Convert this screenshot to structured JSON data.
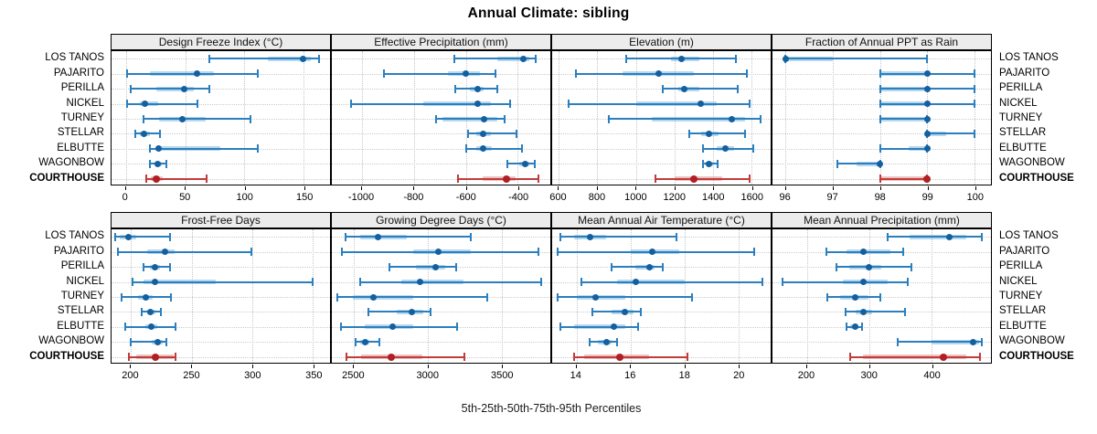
{
  "title": "Annual Climate: sibling",
  "caption": "5th-25th-50th-75th-95th Percentiles",
  "sites": [
    "LOS TANOS",
    "PAJARITO",
    "PERILLA",
    "NICKEL",
    "TURNEY",
    "STELLAR",
    "ELBUTTE",
    "WAGONBOW",
    "COURTHOUSE"
  ],
  "highlight_site": "COURTHOUSE",
  "percentile_labels": [
    "5th",
    "25th",
    "50th",
    "75th",
    "95th"
  ],
  "colors": {
    "blue_dot": "#14609f",
    "blue_line": "#2b7fbe",
    "blue_band": "#7db8de",
    "red_dot": "#b01f24",
    "red_line": "#c23b3b",
    "red_band": "#dc8f8f",
    "strip_bg": "#ececec",
    "grid": "#c9c9c9",
    "border": "#000000"
  },
  "chart_data": [
    {
      "type": "scatter",
      "title": "Design Freeze Index (°C)",
      "grid_row": 0,
      "grid_col": 0,
      "domain": [
        -12,
        172
      ],
      "ticks": [
        0,
        50,
        100,
        150
      ],
      "series": [
        {
          "site": "LOS TANOS",
          "values": [
            70,
            120,
            149,
            156,
            163
          ]
        },
        {
          "site": "PAJARITO",
          "values": [
            1,
            20,
            60,
            74,
            111
          ]
        },
        {
          "site": "PERILLA",
          "values": [
            4,
            26,
            49,
            57,
            70
          ]
        },
        {
          "site": "NICKEL",
          "values": [
            1,
            12,
            16,
            27,
            60
          ]
        },
        {
          "site": "TURNEY",
          "values": [
            15,
            28,
            48,
            67,
            105
          ]
        },
        {
          "site": "STELLAR",
          "values": [
            8,
            12,
            15,
            20,
            29
          ]
        },
        {
          "site": "ELBUTTE",
          "values": [
            20,
            25,
            28,
            80,
            111
          ]
        },
        {
          "site": "WAGONBOW",
          "values": [
            20,
            24,
            27,
            30,
            34
          ]
        },
        {
          "site": "COURTHOUSE",
          "values": [
            17,
            21,
            26,
            31,
            68
          ]
        }
      ]
    },
    {
      "type": "scatter",
      "title": "Effective Precipitation (mm)",
      "grid_row": 0,
      "grid_col": 1,
      "domain": [
        -1115,
        -275
      ],
      "ticks": [
        -1000,
        -800,
        -600,
        -400
      ],
      "series": [
        {
          "site": "LOS TANOS",
          "values": [
            -645,
            -480,
            -380,
            -355,
            -330
          ]
        },
        {
          "site": "PAJARITO",
          "values": [
            -915,
            -670,
            -600,
            -545,
            -485
          ]
        },
        {
          "site": "PERILLA",
          "values": [
            -640,
            -585,
            -555,
            -530,
            -480
          ]
        },
        {
          "site": "NICKEL",
          "values": [
            -1040,
            -765,
            -555,
            -505,
            -430
          ]
        },
        {
          "site": "TURNEY",
          "values": [
            -715,
            -690,
            -530,
            -480,
            -450
          ]
        },
        {
          "site": "STELLAR",
          "values": [
            -590,
            -560,
            -535,
            -505,
            -405
          ]
        },
        {
          "site": "ELBUTTE",
          "values": [
            -600,
            -560,
            -535,
            -500,
            -385
          ]
        },
        {
          "site": "WAGONBOW",
          "values": [
            -440,
            -395,
            -370,
            -355,
            -335
          ]
        },
        {
          "site": "COURTHOUSE",
          "values": [
            -630,
            -535,
            -445,
            -410,
            -320
          ]
        }
      ]
    },
    {
      "type": "scatter",
      "title": "Elevation (m)",
      "grid_row": 0,
      "grid_col": 2,
      "domain": [
        565,
        1700
      ],
      "ticks": [
        600,
        800,
        1000,
        1200,
        1400,
        1600
      ],
      "series": [
        {
          "site": "LOS TANOS",
          "values": [
            950,
            1180,
            1235,
            1330,
            1520
          ]
        },
        {
          "site": "PAJARITO",
          "values": [
            690,
            930,
            1120,
            1300,
            1575
          ]
        },
        {
          "site": "PERILLA",
          "values": [
            1140,
            1220,
            1250,
            1330,
            1530
          ]
        },
        {
          "site": "NICKEL",
          "values": [
            650,
            1000,
            1335,
            1420,
            1590
          ]
        },
        {
          "site": "TURNEY",
          "values": [
            860,
            1085,
            1500,
            1565,
            1650
          ]
        },
        {
          "site": "STELLAR",
          "values": [
            1275,
            1340,
            1380,
            1430,
            1565
          ]
        },
        {
          "site": "ELBUTTE",
          "values": [
            1350,
            1420,
            1465,
            1510,
            1610
          ]
        },
        {
          "site": "WAGONBOW",
          "values": [
            1350,
            1365,
            1380,
            1400,
            1425
          ]
        },
        {
          "site": "COURTHOUSE",
          "values": [
            1100,
            1200,
            1300,
            1450,
            1590
          ]
        }
      ]
    },
    {
      "type": "scatter",
      "title": "Fraction of Annual PPT as Rain",
      "grid_row": 0,
      "grid_col": 3,
      "domain": [
        95.72,
        100.35
      ],
      "ticks": [
        96,
        97,
        98,
        99,
        100
      ],
      "series": [
        {
          "site": "LOS TANOS",
          "values": [
            96,
            96,
            96,
            97,
            99
          ]
        },
        {
          "site": "PAJARITO",
          "values": [
            98,
            98,
            99,
            99,
            100
          ]
        },
        {
          "site": "PERILLA",
          "values": [
            98,
            98,
            99,
            99,
            100
          ]
        },
        {
          "site": "NICKEL",
          "values": [
            98,
            98,
            99,
            99,
            100
          ]
        },
        {
          "site": "TURNEY",
          "values": [
            98,
            98,
            99,
            99,
            99
          ]
        },
        {
          "site": "STELLAR",
          "values": [
            99,
            99,
            99,
            99.4,
            100
          ]
        },
        {
          "site": "ELBUTTE",
          "values": [
            98,
            98.6,
            99,
            99,
            99
          ]
        },
        {
          "site": "WAGONBOW",
          "values": [
            97.1,
            97.5,
            98,
            98,
            98
          ]
        },
        {
          "site": "COURTHOUSE",
          "values": [
            98,
            98,
            99,
            99,
            99
          ]
        }
      ]
    },
    {
      "type": "scatter",
      "title": "Frost-Free Days",
      "grid_row": 1,
      "grid_col": 0,
      "domain": [
        184,
        364
      ],
      "ticks": [
        200,
        250,
        300,
        350
      ],
      "series": [
        {
          "site": "LOS TANOS",
          "values": [
            187,
            191,
            198,
            204,
            232
          ]
        },
        {
          "site": "PAJARITO",
          "values": [
            189,
            213,
            228,
            236,
            299
          ]
        },
        {
          "site": "PERILLA",
          "values": [
            210,
            216,
            220,
            224,
            232
          ]
        },
        {
          "site": "NICKEL",
          "values": [
            201,
            210,
            220,
            270,
            350
          ]
        },
        {
          "site": "TURNEY",
          "values": [
            192,
            206,
            212,
            218,
            233
          ]
        },
        {
          "site": "STELLAR",
          "values": [
            209,
            213,
            216,
            220,
            225
          ]
        },
        {
          "site": "ELBUTTE",
          "values": [
            195,
            212,
            217,
            222,
            237
          ]
        },
        {
          "site": "WAGONBOW",
          "values": [
            200,
            217,
            222,
            226,
            229
          ]
        },
        {
          "site": "COURTHOUSE",
          "values": [
            198,
            204,
            220,
            235,
            237
          ]
        }
      ]
    },
    {
      "type": "scatter",
      "title": "Growing Degree Days (°C)",
      "grid_row": 1,
      "grid_col": 1,
      "domain": [
        2350,
        3830
      ],
      "ticks": [
        2500,
        3000,
        3500
      ],
      "series": [
        {
          "site": "LOS TANOS",
          "values": [
            2440,
            2540,
            2660,
            2860,
            3290
          ]
        },
        {
          "site": "PAJARITO",
          "values": [
            2420,
            2900,
            3070,
            3290,
            3750
          ]
        },
        {
          "site": "PERILLA",
          "values": [
            2740,
            2920,
            3050,
            3120,
            3190
          ]
        },
        {
          "site": "NICKEL",
          "values": [
            2540,
            2820,
            2950,
            3240,
            3770
          ]
        },
        {
          "site": "TURNEY",
          "values": [
            2390,
            2490,
            2630,
            2900,
            3400
          ]
        },
        {
          "site": "STELLAR",
          "values": [
            2600,
            2790,
            2890,
            2970,
            3020
          ]
        },
        {
          "site": "ELBUTTE",
          "values": [
            2410,
            2570,
            2760,
            2900,
            3200
          ]
        },
        {
          "site": "WAGONBOW",
          "values": [
            2510,
            2540,
            2575,
            2605,
            2675
          ]
        },
        {
          "site": "COURTHOUSE",
          "values": [
            2450,
            2550,
            2755,
            2960,
            3250
          ]
        }
      ]
    },
    {
      "type": "scatter",
      "title": "Mean Annual Air Temperature (°C)",
      "grid_row": 1,
      "grid_col": 2,
      "domain": [
        13.1,
        21.2
      ],
      "ticks": [
        14,
        16,
        18,
        20
      ],
      "series": [
        {
          "site": "LOS TANOS",
          "values": [
            13.4,
            13.9,
            14.5,
            15.1,
            17.7
          ]
        },
        {
          "site": "PAJARITO",
          "values": [
            13.3,
            16.0,
            16.8,
            17.8,
            20.6
          ]
        },
        {
          "site": "PERILLA",
          "values": [
            15.3,
            16.2,
            16.7,
            16.9,
            17.2
          ]
        },
        {
          "site": "NICKEL",
          "values": [
            14.2,
            15.5,
            16.2,
            18.0,
            20.9
          ]
        },
        {
          "site": "TURNEY",
          "values": [
            13.3,
            14.0,
            14.7,
            15.8,
            18.3
          ]
        },
        {
          "site": "STELLAR",
          "values": [
            14.6,
            15.3,
            15.8,
            16.1,
            16.4
          ]
        },
        {
          "site": "ELBUTTE",
          "values": [
            13.4,
            13.9,
            15.4,
            15.8,
            16.3
          ]
        },
        {
          "site": "WAGONBOW",
          "values": [
            14.5,
            14.8,
            15.1,
            15.3,
            15.5
          ]
        },
        {
          "site": "COURTHOUSE",
          "values": [
            13.9,
            14.3,
            15.6,
            16.7,
            18.1
          ]
        }
      ]
    },
    {
      "type": "scatter",
      "title": "Mean Annual Precipitation (mm)",
      "grid_row": 1,
      "grid_col": 3,
      "domain": [
        145,
        495
      ],
      "ticks": [
        200,
        300,
        400
      ],
      "series": [
        {
          "site": "LOS TANOS",
          "values": [
            330,
            365,
            428,
            455,
            480
          ]
        },
        {
          "site": "PAJARITO",
          "values": [
            232,
            263,
            291,
            334,
            354
          ]
        },
        {
          "site": "PERILLA",
          "values": [
            248,
            268,
            300,
            319,
            367
          ]
        },
        {
          "site": "NICKEL",
          "values": [
            161,
            258,
            290,
            329,
            362
          ]
        },
        {
          "site": "TURNEY",
          "values": [
            233,
            253,
            277,
            299,
            318
          ]
        },
        {
          "site": "STELLAR",
          "values": [
            262,
            278,
            291,
            304,
            358
          ]
        },
        {
          "site": "ELBUTTE",
          "values": [
            264,
            269,
            278,
            283,
            288
          ]
        },
        {
          "site": "WAGONBOW",
          "values": [
            345,
            400,
            467,
            476,
            481
          ]
        },
        {
          "site": "COURTHOUSE",
          "values": [
            270,
            290,
            419,
            456,
            477
          ]
        }
      ]
    }
  ]
}
